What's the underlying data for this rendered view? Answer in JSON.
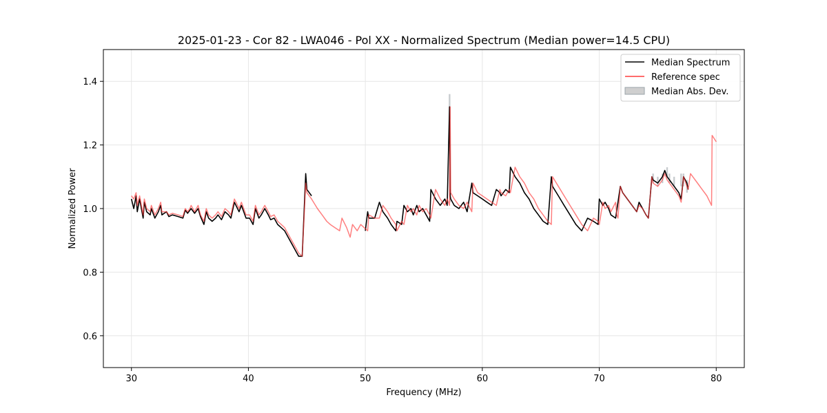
{
  "chart_data": {
    "type": "line",
    "title": "2025-01-23 - Cor 82 - LWA046 - Pol XX - Normalized Spectrum (Median power=14.5 CPU)",
    "xlabel": "Frequency (MHz)",
    "ylabel": "Normalized Power",
    "xlim": [
      27.6,
      82.4
    ],
    "ylim": [
      0.5,
      1.5
    ],
    "xticks": [
      30,
      40,
      50,
      60,
      70,
      80
    ],
    "yticks": [
      0.6,
      0.8,
      1.0,
      1.2,
      1.4
    ],
    "xtick_labels": [
      "30",
      "40",
      "50",
      "60",
      "70",
      "80"
    ],
    "ytick_labels": [
      "0.6",
      "0.8",
      "1.0",
      "1.2",
      "1.4"
    ],
    "grid": true,
    "legend_position": "top-right",
    "legend": [
      "Median Spectrum",
      "Reference spec",
      "Median Abs. Dev."
    ],
    "colors": {
      "median": "#000000",
      "reference": "#ff3b3b",
      "mad": "#9aa3a8"
    },
    "series": [
      {
        "name": "Reference spec",
        "x": [
          30.0,
          30.2,
          30.4,
          30.5,
          30.7,
          31.0,
          31.1,
          31.3,
          31.6,
          31.7,
          32.0,
          32.3,
          32.5,
          32.6,
          33.0,
          33.2,
          33.5,
          34.0,
          34.4,
          34.6,
          34.8,
          35.0,
          35.1,
          35.4,
          35.7,
          35.9,
          36.2,
          36.4,
          36.6,
          36.9,
          37.2,
          37.4,
          37.7,
          38.0,
          38.3,
          38.5,
          38.8,
          39.2,
          39.4,
          39.8,
          40.1,
          40.4,
          40.6,
          40.9,
          41.1,
          41.4,
          41.7,
          41.9,
          42.2,
          42.5,
          42.8,
          43.1,
          43.4,
          43.7,
          44.0,
          44.3,
          44.6,
          44.9,
          45.0,
          45.4,
          45.9,
          46.3,
          46.7,
          47.0,
          47.4,
          47.8,
          48.0,
          48.4,
          48.7,
          48.9,
          49.3,
          49.6,
          49.9,
          50.2,
          50.3,
          50.8,
          51.2,
          51.5,
          51.9,
          52.2,
          52.6,
          52.7,
          53.1,
          53.3,
          53.6,
          53.9,
          54.1,
          54.4,
          54.6,
          54.9,
          55.2,
          55.5,
          55.6,
          56.0,
          56.4,
          56.8,
          57.0,
          57.2,
          57.25,
          57.3,
          57.6,
          58.0,
          58.4,
          58.7,
          59.1,
          59.2,
          59.6,
          60.0,
          60.4,
          60.8,
          61.2,
          61.5,
          61.6,
          62.0,
          62.3,
          62.4,
          62.8,
          63.2,
          63.6,
          64.0,
          64.4,
          64.8,
          65.2,
          65.6,
          65.9,
          66.0,
          66.5,
          67.0,
          67.5,
          68.0,
          68.5,
          69.0,
          69.5,
          69.9,
          70.0,
          70.3,
          70.5,
          70.8,
          71.0,
          71.4,
          71.5,
          71.6,
          71.8,
          72.0,
          72.4,
          72.8,
          73.2,
          73.4,
          73.7,
          74.0,
          74.2,
          74.5,
          74.6,
          75.0,
          75.4,
          75.6,
          75.8,
          76.0,
          76.4,
          76.8,
          77.0,
          77.2,
          77.5,
          77.6,
          77.8,
          78.0,
          78.4,
          78.8,
          79.2,
          79.6,
          79.65,
          80.0
        ],
        "values": [
          1.04,
          1.03,
          1.05,
          1.01,
          1.04,
          0.98,
          1.03,
          1.0,
          0.99,
          1.01,
          0.98,
          1.0,
          1.02,
          0.99,
          0.99,
          0.98,
          0.985,
          0.98,
          0.975,
          1.0,
          0.99,
          1.0,
          1.01,
          0.99,
          1.01,
          0.98,
          0.96,
          1.0,
          0.98,
          0.97,
          0.98,
          0.99,
          0.975,
          1.0,
          0.99,
          0.98,
          1.03,
          1.0,
          1.02,
          0.98,
          0.98,
          0.96,
          1.01,
          0.98,
          0.99,
          1.01,
          0.99,
          0.975,
          0.98,
          0.96,
          0.95,
          0.94,
          0.92,
          0.9,
          0.88,
          0.86,
          0.85,
          1.08,
          1.05,
          1.03,
          1.0,
          0.98,
          0.96,
          0.95,
          0.94,
          0.93,
          0.97,
          0.94,
          0.91,
          0.95,
          0.93,
          0.95,
          0.94,
          0.93,
          0.98,
          0.97,
          0.97,
          1.01,
          0.99,
          0.97,
          0.95,
          0.93,
          0.96,
          0.95,
          1.01,
          0.99,
          1.0,
          0.98,
          1.01,
          0.99,
          1.0,
          0.98,
          0.97,
          1.06,
          1.03,
          1.01,
          1.03,
          1.01,
          1.32,
          1.05,
          1.03,
          1.01,
          1.0,
          1.02,
          0.99,
          1.08,
          1.05,
          1.04,
          1.03,
          1.02,
          1.01,
          1.06,
          1.05,
          1.04,
          1.06,
          1.05,
          1.13,
          1.1,
          1.08,
          1.05,
          1.03,
          1.0,
          0.98,
          0.96,
          0.95,
          1.1,
          1.07,
          1.04,
          1.01,
          0.98,
          0.95,
          0.93,
          0.97,
          0.96,
          0.95,
          1.02,
          1.0,
          1.01,
          0.99,
          1.02,
          0.98,
          0.97,
          1.07,
          1.05,
          1.03,
          1.01,
          0.99,
          1.01,
          1.0,
          0.98,
          0.97,
          1.1,
          1.08,
          1.07,
          1.09,
          1.11,
          1.09,
          1.08,
          1.06,
          1.04,
          1.02,
          1.1,
          1.07,
          1.06,
          1.11,
          1.1,
          1.08,
          1.06,
          1.04,
          1.01,
          1.23,
          1.21
        ]
      },
      {
        "name": "Median Spectrum",
        "x": [
          30.0,
          30.2,
          30.4,
          30.5,
          30.7,
          31.0,
          31.1,
          31.3,
          31.6,
          31.7,
          32.0,
          32.3,
          32.5,
          32.6,
          33.0,
          33.2,
          33.5,
          34.0,
          34.4,
          34.6,
          34.8,
          35.0,
          35.1,
          35.4,
          35.7,
          35.9,
          36.2,
          36.4,
          36.6,
          36.9,
          37.2,
          37.4,
          37.7,
          38.0,
          38.3,
          38.5,
          38.8,
          39.2,
          39.4,
          39.8,
          40.1,
          40.4,
          40.6,
          40.9,
          41.1,
          41.4,
          41.7,
          41.9,
          42.2,
          42.5,
          42.8,
          43.1,
          43.4,
          43.7,
          44.0,
          44.3,
          44.6,
          44.9,
          45.0,
          45.4
        ],
        "values": [
          1.03,
          1.0,
          1.04,
          0.99,
          1.03,
          0.97,
          1.02,
          0.99,
          0.98,
          1.0,
          0.97,
          0.99,
          1.01,
          0.98,
          0.99,
          0.975,
          0.98,
          0.975,
          0.97,
          0.995,
          0.985,
          0.995,
          1.0,
          0.985,
          1.0,
          0.975,
          0.95,
          0.99,
          0.97,
          0.96,
          0.97,
          0.98,
          0.965,
          0.99,
          0.98,
          0.97,
          1.02,
          0.99,
          1.01,
          0.97,
          0.97,
          0.95,
          1.0,
          0.97,
          0.98,
          1.0,
          0.98,
          0.965,
          0.97,
          0.95,
          0.94,
          0.93,
          0.91,
          0.89,
          0.87,
          0.85,
          0.85,
          1.11,
          1.06,
          1.04
        ]
      },
      {
        "name": "Median Spectrum",
        "x": [
          50.0,
          50.2,
          50.3,
          50.8,
          51.2,
          51.5,
          51.9,
          52.2,
          52.6,
          52.7,
          53.1,
          53.3,
          53.6,
          53.9,
          54.1,
          54.4,
          54.6,
          54.9,
          55.2,
          55.5,
          55.6,
          56.0,
          56.4,
          56.8,
          57.0,
          57.2,
          57.25,
          57.3,
          57.6,
          58.0,
          58.4,
          58.7,
          59.1,
          59.2,
          59.6,
          60.0,
          60.4,
          60.8,
          61.2,
          61.5,
          61.6,
          62.0,
          62.3,
          62.4,
          62.8,
          63.2,
          63.6,
          64.0,
          64.4,
          64.8,
          65.2,
          65.6,
          65.9,
          66.0,
          66.5,
          67.0,
          67.5,
          68.0,
          68.5,
          69.0,
          69.5,
          69.9,
          70.0,
          70.3,
          70.5,
          70.8,
          71.0,
          71.4,
          71.8,
          72.0,
          72.4,
          72.8,
          73.2,
          73.4,
          73.7,
          74.0,
          74.2,
          74.5,
          74.6,
          75.0,
          75.4,
          75.6,
          75.8,
          76.0,
          76.4,
          76.8,
          77.0,
          77.2,
          77.5,
          77.6
        ],
        "values": [
          0.93,
          0.99,
          0.97,
          0.97,
          1.02,
          0.99,
          0.97,
          0.95,
          0.93,
          0.96,
          0.95,
          1.01,
          0.99,
          1.0,
          0.98,
          1.01,
          0.99,
          1.0,
          0.98,
          0.96,
          1.06,
          1.03,
          1.01,
          1.03,
          1.01,
          1.32,
          1.04,
          1.03,
          1.01,
          1.0,
          1.02,
          0.99,
          1.08,
          1.05,
          1.04,
          1.03,
          1.02,
          1.01,
          1.06,
          1.05,
          1.04,
          1.06,
          1.05,
          1.13,
          1.1,
          1.08,
          1.05,
          1.03,
          1.0,
          0.98,
          0.96,
          0.95,
          1.1,
          1.07,
          1.04,
          1.01,
          0.98,
          0.95,
          0.93,
          0.97,
          0.96,
          0.95,
          1.03,
          1.01,
          1.02,
          1.0,
          0.98,
          0.97,
          1.07,
          1.05,
          1.03,
          1.01,
          0.99,
          1.02,
          1.0,
          0.98,
          0.97,
          1.1,
          1.09,
          1.08,
          1.1,
          1.12,
          1.1,
          1.09,
          1.07,
          1.05,
          1.03,
          1.1,
          1.08,
          1.06
        ]
      }
    ],
    "mad_band": {
      "name": "Median Abs. Dev.",
      "x": [
        57.2,
        57.25,
        74.6,
        75.0,
        75.4,
        75.8,
        76.0,
        76.4,
        77.0,
        77.2,
        77.5
      ],
      "upper": [
        1.36,
        1.06,
        1.11,
        1.1,
        1.11,
        1.13,
        1.11,
        1.1,
        1.11,
        1.11,
        1.09
      ],
      "lower": [
        1.28,
        1.02,
        1.08,
        1.07,
        1.08,
        1.1,
        1.08,
        1.07,
        1.07,
        1.07,
        1.05
      ]
    }
  }
}
